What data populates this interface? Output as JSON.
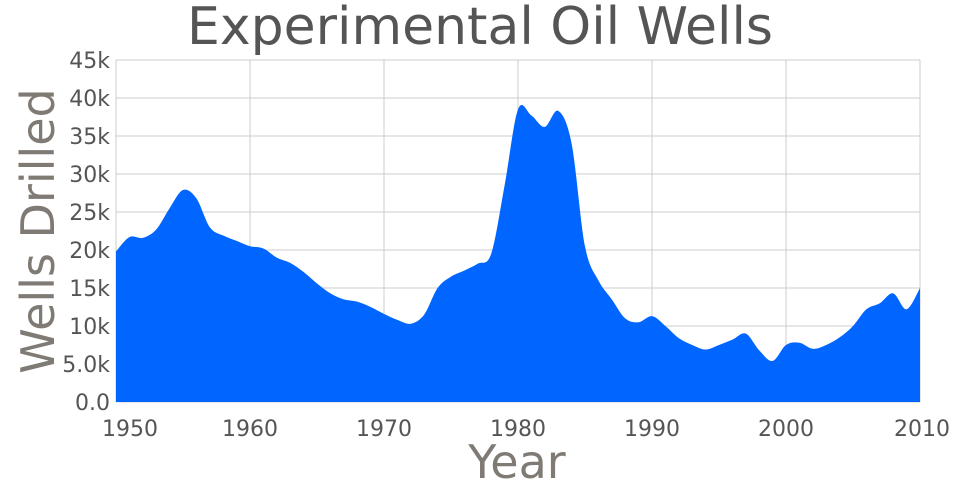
{
  "chart_data": {
    "type": "area",
    "title": "Experimental Oil Wells",
    "xlabel": "Year",
    "ylabel": "Wells Drilled",
    "xlim": [
      1950,
      2010
    ],
    "ylim": [
      0,
      45000
    ],
    "x_ticks": [
      1950,
      1960,
      1970,
      1980,
      1990,
      2000,
      2010
    ],
    "x_tick_labels": [
      "1950",
      "1960",
      "1970",
      "1980",
      "1990",
      "2000",
      "2010"
    ],
    "y_ticks": [
      0,
      5000,
      10000,
      15000,
      20000,
      25000,
      30000,
      35000,
      40000,
      45000
    ],
    "y_tick_labels": [
      "0.0",
      "5.0k",
      "10k",
      "15k",
      "20k",
      "25k",
      "30k",
      "35k",
      "40k",
      "45k"
    ],
    "grid": true,
    "fill_color": "#0066ff",
    "series": [
      {
        "x": [
          1950,
          1951,
          1952,
          1953,
          1954,
          1955,
          1956,
          1957,
          1958,
          1959,
          1960,
          1961,
          1962,
          1963,
          1964,
          1965,
          1966,
          1967,
          1968,
          1969,
          1970,
          1971,
          1972,
          1973,
          1974,
          1975,
          1976,
          1977,
          1978,
          1979,
          1980,
          1981,
          1982,
          1983,
          1984,
          1985,
          1986,
          1987,
          1988,
          1989,
          1990,
          1991,
          1992,
          1993,
          1994,
          1995,
          1996,
          1997,
          1998,
          1999,
          2000,
          2001,
          2002,
          2003,
          2004,
          2005,
          2006,
          2007,
          2008,
          2009,
          2010
        ],
        "values": [
          19800,
          21700,
          21600,
          22700,
          25500,
          27900,
          26800,
          23000,
          21900,
          21200,
          20500,
          20200,
          19000,
          18300,
          17100,
          15600,
          14300,
          13500,
          13200,
          12500,
          11600,
          10800,
          10300,
          11500,
          15000,
          16500,
          17300,
          18200,
          19500,
          28500,
          38500,
          37700,
          36200,
          38300,
          34000,
          20500,
          16000,
          13500,
          11000,
          10500,
          11300,
          10000,
          8400,
          7500,
          6900,
          7500,
          8200,
          9000,
          6800,
          5400,
          7500,
          7800,
          7000,
          7500,
          8500,
          10000,
          12200,
          13000,
          14300,
          12200,
          15000
        ]
      }
    ]
  }
}
